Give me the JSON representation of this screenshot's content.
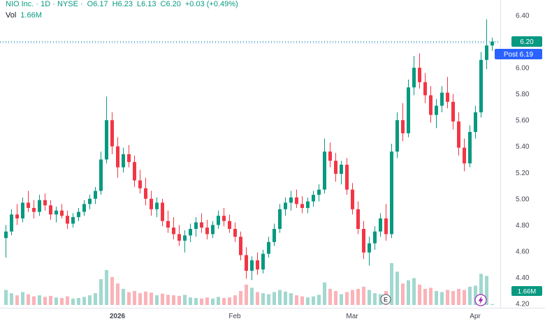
{
  "header": {
    "title": "NIO Inc. · 1D · NYSE ·",
    "o": "O6.17",
    "h": "H6.23",
    "l": "L6.13",
    "c": "C6.20",
    "change": "+0.03 (+0.49%)",
    "vol_label": "Vol",
    "vol_value": "1.66M"
  },
  "colors": {
    "up": "#089981",
    "down": "#f23645",
    "vol_up": "rgba(8,153,129,0.38)",
    "vol_down": "rgba(242,54,69,0.38)",
    "post": "#2962ff",
    "axis_text": "#434651",
    "grid": "#e0e3eb",
    "flash": "#9c27b0"
  },
  "chart_data": {
    "type": "candlestick",
    "symbol": "NIO Inc.",
    "interval": "1D",
    "exchange": "NYSE",
    "ylim": [
      4.2,
      6.4
    ],
    "price_ticks": [
      "6.40",
      "6.20",
      "6.00",
      "5.80",
      "5.60",
      "5.40",
      "5.20",
      "5.00",
      "4.80",
      "4.60",
      "4.40",
      "4.20"
    ],
    "time_ticks": [
      {
        "label": "2026",
        "index": 20
      },
      {
        "label": "Feb",
        "index": 41
      },
      {
        "label": "Mar",
        "index": 62
      },
      {
        "label": "Apr",
        "index": 84
      }
    ],
    "last_price": 6.2,
    "post_label": "Post",
    "post_price": 6.19,
    "volume_label": "1.66M",
    "markers": [
      {
        "type": "earnings",
        "label": "E",
        "index": 68
      },
      {
        "type": "flash",
        "index": 85
      }
    ],
    "candles": [
      [
        4.7,
        4.8,
        4.55,
        4.75,
        28
      ],
      [
        4.75,
        4.92,
        4.72,
        4.88,
        22
      ],
      [
        4.88,
        4.96,
        4.8,
        4.85,
        18
      ],
      [
        4.85,
        5.01,
        4.82,
        4.97,
        24
      ],
      [
        4.97,
        5.06,
        4.9,
        4.93,
        20
      ],
      [
        4.93,
        4.99,
        4.85,
        4.9,
        16
      ],
      [
        4.9,
        5.03,
        4.87,
        4.99,
        18
      ],
      [
        4.99,
        5.04,
        4.91,
        4.95,
        15
      ],
      [
        4.95,
        4.99,
        4.84,
        4.88,
        17
      ],
      [
        4.88,
        4.94,
        4.82,
        4.91,
        14
      ],
      [
        4.91,
        4.96,
        4.85,
        4.87,
        13
      ],
      [
        4.87,
        4.91,
        4.77,
        4.81,
        16
      ],
      [
        4.81,
        4.89,
        4.78,
        4.86,
        12
      ],
      [
        4.86,
        4.93,
        4.83,
        4.9,
        13
      ],
      [
        4.9,
        4.99,
        4.87,
        4.96,
        15
      ],
      [
        4.96,
        5.03,
        4.92,
        5.0,
        18
      ],
      [
        5.0,
        5.09,
        4.96,
        5.06,
        22
      ],
      [
        5.06,
        5.36,
        5.03,
        5.3,
        48
      ],
      [
        5.3,
        5.78,
        5.27,
        5.6,
        65
      ],
      [
        5.6,
        5.66,
        5.34,
        5.4,
        52
      ],
      [
        5.4,
        5.47,
        5.16,
        5.24,
        40
      ],
      [
        5.24,
        5.39,
        5.2,
        5.34,
        30
      ],
      [
        5.34,
        5.41,
        5.24,
        5.28,
        24
      ],
      [
        5.28,
        5.33,
        5.09,
        5.14,
        26
      ],
      [
        5.14,
        5.22,
        5.04,
        5.08,
        22
      ],
      [
        5.08,
        5.16,
        4.95,
        5.0,
        25
      ],
      [
        5.0,
        5.06,
        4.87,
        4.92,
        23
      ],
      [
        4.92,
        5.01,
        4.86,
        4.97,
        18
      ],
      [
        4.97,
        5.0,
        4.79,
        4.83,
        21
      ],
      [
        4.83,
        4.91,
        4.74,
        4.78,
        19
      ],
      [
        4.78,
        4.86,
        4.69,
        4.73,
        18
      ],
      [
        4.73,
        4.8,
        4.64,
        4.68,
        17
      ],
      [
        4.68,
        4.76,
        4.59,
        4.72,
        19
      ],
      [
        4.72,
        4.81,
        4.67,
        4.77,
        14
      ],
      [
        4.77,
        4.86,
        4.71,
        4.82,
        13
      ],
      [
        4.82,
        4.89,
        4.74,
        4.78,
        12
      ],
      [
        4.78,
        4.84,
        4.69,
        4.73,
        14
      ],
      [
        4.73,
        4.83,
        4.7,
        4.8,
        12
      ],
      [
        4.8,
        4.91,
        4.77,
        4.87,
        15
      ],
      [
        4.87,
        4.93,
        4.79,
        4.83,
        13
      ],
      [
        4.83,
        4.88,
        4.74,
        4.77,
        14
      ],
      [
        4.77,
        4.82,
        4.67,
        4.71,
        18
      ],
      [
        4.71,
        4.75,
        4.53,
        4.57,
        26
      ],
      [
        4.57,
        4.63,
        4.39,
        4.45,
        38
      ],
      [
        4.45,
        4.56,
        4.38,
        4.53,
        32
      ],
      [
        4.53,
        4.59,
        4.42,
        4.46,
        24
      ],
      [
        4.46,
        4.61,
        4.43,
        4.58,
        22
      ],
      [
        4.58,
        4.71,
        4.55,
        4.67,
        20
      ],
      [
        4.67,
        4.81,
        4.64,
        4.77,
        24
      ],
      [
        4.77,
        4.96,
        4.74,
        4.92,
        28
      ],
      [
        4.92,
        5.01,
        4.87,
        4.97,
        25
      ],
      [
        4.97,
        5.06,
        4.91,
        5.01,
        22
      ],
      [
        5.01,
        5.07,
        4.93,
        4.96,
        18
      ],
      [
        4.96,
        5.02,
        4.89,
        4.93,
        16
      ],
      [
        4.93,
        5.01,
        4.89,
        4.98,
        14
      ],
      [
        4.98,
        5.06,
        4.94,
        5.03,
        16
      ],
      [
        5.03,
        5.11,
        4.98,
        5.07,
        19
      ],
      [
        5.07,
        5.46,
        5.04,
        5.36,
        42
      ],
      [
        5.36,
        5.43,
        5.24,
        5.29,
        30
      ],
      [
        5.29,
        5.35,
        5.13,
        5.19,
        26
      ],
      [
        5.19,
        5.29,
        5.11,
        5.26,
        20
      ],
      [
        5.26,
        5.31,
        5.03,
        5.07,
        24
      ],
      [
        5.07,
        5.12,
        4.88,
        4.92,
        28
      ],
      [
        4.92,
        4.98,
        4.73,
        4.77,
        30
      ],
      [
        4.77,
        4.83,
        4.54,
        4.59,
        34
      ],
      [
        4.59,
        4.71,
        4.49,
        4.66,
        28
      ],
      [
        4.66,
        4.79,
        4.61,
        4.75,
        22
      ],
      [
        4.75,
        4.89,
        4.71,
        4.85,
        20
      ],
      [
        4.85,
        4.96,
        4.68,
        4.73,
        26
      ],
      [
        4.73,
        5.42,
        4.7,
        5.36,
        78
      ],
      [
        5.36,
        5.66,
        5.31,
        5.6,
        62
      ],
      [
        5.6,
        5.73,
        5.44,
        5.5,
        40
      ],
      [
        5.5,
        5.91,
        5.47,
        5.85,
        46
      ],
      [
        5.85,
        6.09,
        5.79,
        6.0,
        50
      ],
      [
        6.0,
        6.11,
        5.84,
        5.89,
        38
      ],
      [
        5.89,
        5.96,
        5.73,
        5.79,
        30
      ],
      [
        5.79,
        5.86,
        5.58,
        5.64,
        32
      ],
      [
        5.64,
        5.76,
        5.54,
        5.71,
        26
      ],
      [
        5.71,
        5.86,
        5.66,
        5.81,
        24
      ],
      [
        5.81,
        5.93,
        5.69,
        5.74,
        28
      ],
      [
        5.74,
        5.8,
        5.53,
        5.59,
        26
      ],
      [
        5.59,
        5.66,
        5.33,
        5.39,
        30
      ],
      [
        5.39,
        5.46,
        5.21,
        5.27,
        28
      ],
      [
        5.27,
        5.56,
        5.24,
        5.51,
        34
      ],
      [
        5.51,
        5.71,
        5.46,
        5.66,
        36
      ],
      [
        5.66,
        6.12,
        5.62,
        6.06,
        58
      ],
      [
        6.06,
        6.37,
        5.99,
        6.17,
        54
      ],
      [
        6.17,
        6.23,
        6.13,
        6.2,
        1.66
      ]
    ]
  }
}
